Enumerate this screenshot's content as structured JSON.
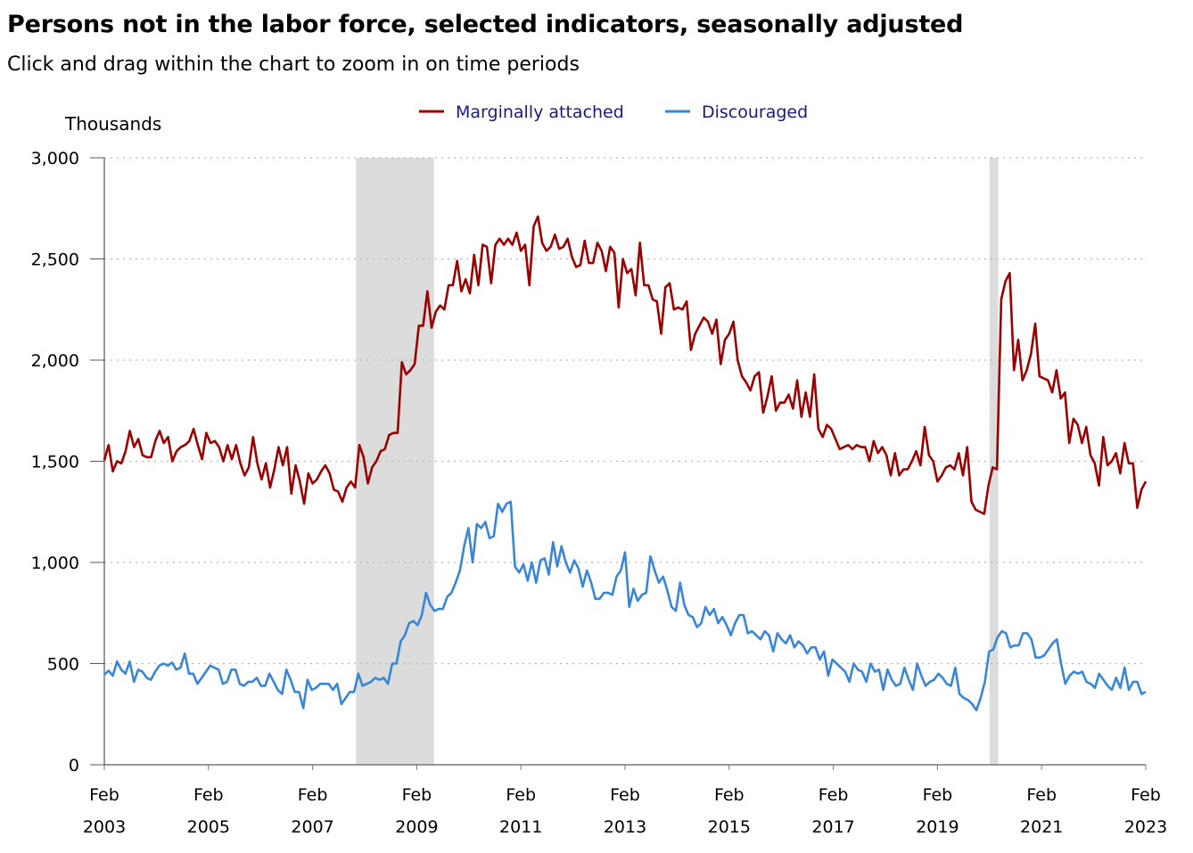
{
  "title": "Persons not in the labor force, selected indicators, seasonally adjusted",
  "subtitle": "Click and drag within the chart to zoom in on time periods",
  "colors": {
    "marginally_attached": "#990000",
    "discouraged": "#3a86d6",
    "recession": "#dcdcdc",
    "grid": "#b4b4b4",
    "legend_text": "#1a1a80"
  },
  "chart_data": {
    "type": "line",
    "title": "Persons not in the labor force, selected indicators, seasonally adjusted",
    "ylabel": "Thousands",
    "ylim": [
      0,
      3000
    ],
    "yticks": [
      0,
      500,
      1000,
      1500,
      2000,
      2500,
      3000
    ],
    "ytick_labels": [
      "0",
      "500",
      "1,000",
      "1,500",
      "2,000",
      "2,500",
      "3,000"
    ],
    "x_start": "2003-02",
    "x_end": "2023-02",
    "xticks": [
      {
        "month": "Feb",
        "year": "2003"
      },
      {
        "month": "Feb",
        "year": "2005"
      },
      {
        "month": "Feb",
        "year": "2007"
      },
      {
        "month": "Feb",
        "year": "2009"
      },
      {
        "month": "Feb",
        "year": "2011"
      },
      {
        "month": "Feb",
        "year": "2013"
      },
      {
        "month": "Feb",
        "year": "2015"
      },
      {
        "month": "Feb",
        "year": "2017"
      },
      {
        "month": "Feb",
        "year": "2019"
      },
      {
        "month": "Feb",
        "year": "2021"
      },
      {
        "month": "Feb",
        "year": "2023"
      }
    ],
    "recessions": [
      {
        "start": "2007-12",
        "end": "2009-06"
      },
      {
        "start": "2020-02",
        "end": "2020-04"
      }
    ],
    "legend_position": "top-center",
    "grid": true,
    "series": [
      {
        "name": "Marginally attached",
        "values": [
          1505,
          1580,
          1450,
          1500,
          1490,
          1550,
          1650,
          1570,
          1610,
          1530,
          1520,
          1520,
          1600,
          1650,
          1590,
          1620,
          1500,
          1550,
          1570,
          1580,
          1600,
          1660,
          1580,
          1510,
          1640,
          1590,
          1600,
          1570,
          1500,
          1580,
          1510,
          1580,
          1490,
          1430,
          1470,
          1620,
          1490,
          1410,
          1490,
          1370,
          1460,
          1570,
          1480,
          1570,
          1340,
          1480,
          1400,
          1290,
          1440,
          1390,
          1410,
          1450,
          1480,
          1440,
          1360,
          1350,
          1300,
          1370,
          1400,
          1370,
          1580,
          1520,
          1390,
          1470,
          1500,
          1550,
          1560,
          1630,
          1640,
          1640,
          1990,
          1930,
          1950,
          1980,
          2170,
          2170,
          2340,
          2160,
          2240,
          2270,
          2250,
          2370,
          2370,
          2490,
          2340,
          2400,
          2330,
          2520,
          2370,
          2570,
          2560,
          2380,
          2570,
          2600,
          2570,
          2600,
          2570,
          2630,
          2540,
          2570,
          2370,
          2660,
          2710,
          2580,
          2540,
          2560,
          2620,
          2550,
          2560,
          2600,
          2510,
          2460,
          2470,
          2590,
          2480,
          2480,
          2580,
          2540,
          2440,
          2560,
          2530,
          2260,
          2500,
          2430,
          2450,
          2320,
          2580,
          2370,
          2370,
          2300,
          2290,
          2130,
          2360,
          2380,
          2250,
          2260,
          2250,
          2290,
          2050,
          2130,
          2170,
          2210,
          2190,
          2130,
          2200,
          1980,
          2100,
          2130,
          2190,
          2000,
          1920,
          1890,
          1850,
          1920,
          1940,
          1740,
          1820,
          1920,
          1750,
          1790,
          1790,
          1830,
          1760,
          1900,
          1720,
          1840,
          1720,
          1930,
          1660,
          1620,
          1680,
          1660,
          1610,
          1560,
          1570,
          1580,
          1560,
          1580,
          1570,
          1570,
          1500,
          1600,
          1540,
          1570,
          1530,
          1430,
          1540,
          1430,
          1460,
          1460,
          1500,
          1550,
          1480,
          1670,
          1530,
          1500,
          1400,
          1430,
          1470,
          1480,
          1460,
          1540,
          1430,
          1570,
          1300,
          1260,
          1250,
          1240,
          1380,
          1470,
          1460,
          2300,
          2390,
          2430,
          1950,
          2100,
          1900,
          1950,
          2030,
          2180,
          1920,
          1910,
          1900,
          1840,
          1950,
          1810,
          1840,
          1590,
          1710,
          1680,
          1590,
          1670,
          1530,
          1490,
          1380,
          1620,
          1480,
          1500,
          1540,
          1440,
          1590,
          1490,
          1490,
          1270,
          1360,
          1400
        ]
      },
      {
        "name": "Discouraged",
        "values": [
          445,
          465,
          440,
          510,
          470,
          450,
          510,
          410,
          470,
          460,
          430,
          420,
          460,
          490,
          500,
          490,
          505,
          470,
          480,
          550,
          450,
          450,
          400,
          430,
          460,
          490,
          480,
          470,
          400,
          410,
          470,
          470,
          400,
          390,
          410,
          410,
          430,
          390,
          390,
          450,
          410,
          370,
          350,
          470,
          420,
          360,
          360,
          280,
          420,
          370,
          380,
          400,
          400,
          400,
          370,
          400,
          300,
          330,
          360,
          360,
          450,
          390,
          400,
          410,
          430,
          420,
          430,
          400,
          500,
          500,
          610,
          640,
          700,
          710,
          690,
          740,
          850,
          790,
          760,
          770,
          770,
          830,
          850,
          900,
          960,
          1080,
          1170,
          1000,
          1190,
          1170,
          1200,
          1120,
          1130,
          1290,
          1250,
          1290,
          1300,
          980,
          950,
          990,
          910,
          1000,
          900,
          1010,
          1020,
          940,
          1100,
          980,
          1080,
          1000,
          950,
          1010,
          970,
          880,
          960,
          900,
          820,
          820,
          850,
          850,
          840,
          930,
          960,
          1050,
          780,
          870,
          810,
          840,
          850,
          1030,
          960,
          900,
          930,
          860,
          780,
          760,
          900,
          790,
          740,
          730,
          680,
          700,
          780,
          740,
          770,
          700,
          730,
          690,
          640,
          700,
          740,
          740,
          650,
          660,
          640,
          620,
          660,
          640,
          560,
          650,
          620,
          600,
          640,
          580,
          610,
          590,
          550,
          580,
          580,
          520,
          560,
          440,
          520,
          500,
          480,
          460,
          410,
          500,
          470,
          460,
          410,
          500,
          460,
          470,
          370,
          470,
          420,
          390,
          400,
          480,
          420,
          370,
          500,
          440,
          390,
          410,
          420,
          450,
          430,
          400,
          390,
          480,
          350,
          330,
          320,
          300,
          270,
          330,
          410,
          560,
          570,
          630,
          660,
          650,
          580,
          590,
          590,
          650,
          650,
          620,
          530,
          530,
          540,
          570,
          600,
          620,
          500,
          400,
          440,
          460,
          450,
          460,
          410,
          400,
          380,
          450,
          420,
          390,
          370,
          430,
          380,
          480,
          370,
          410,
          410,
          350,
          360
        ]
      }
    ]
  }
}
